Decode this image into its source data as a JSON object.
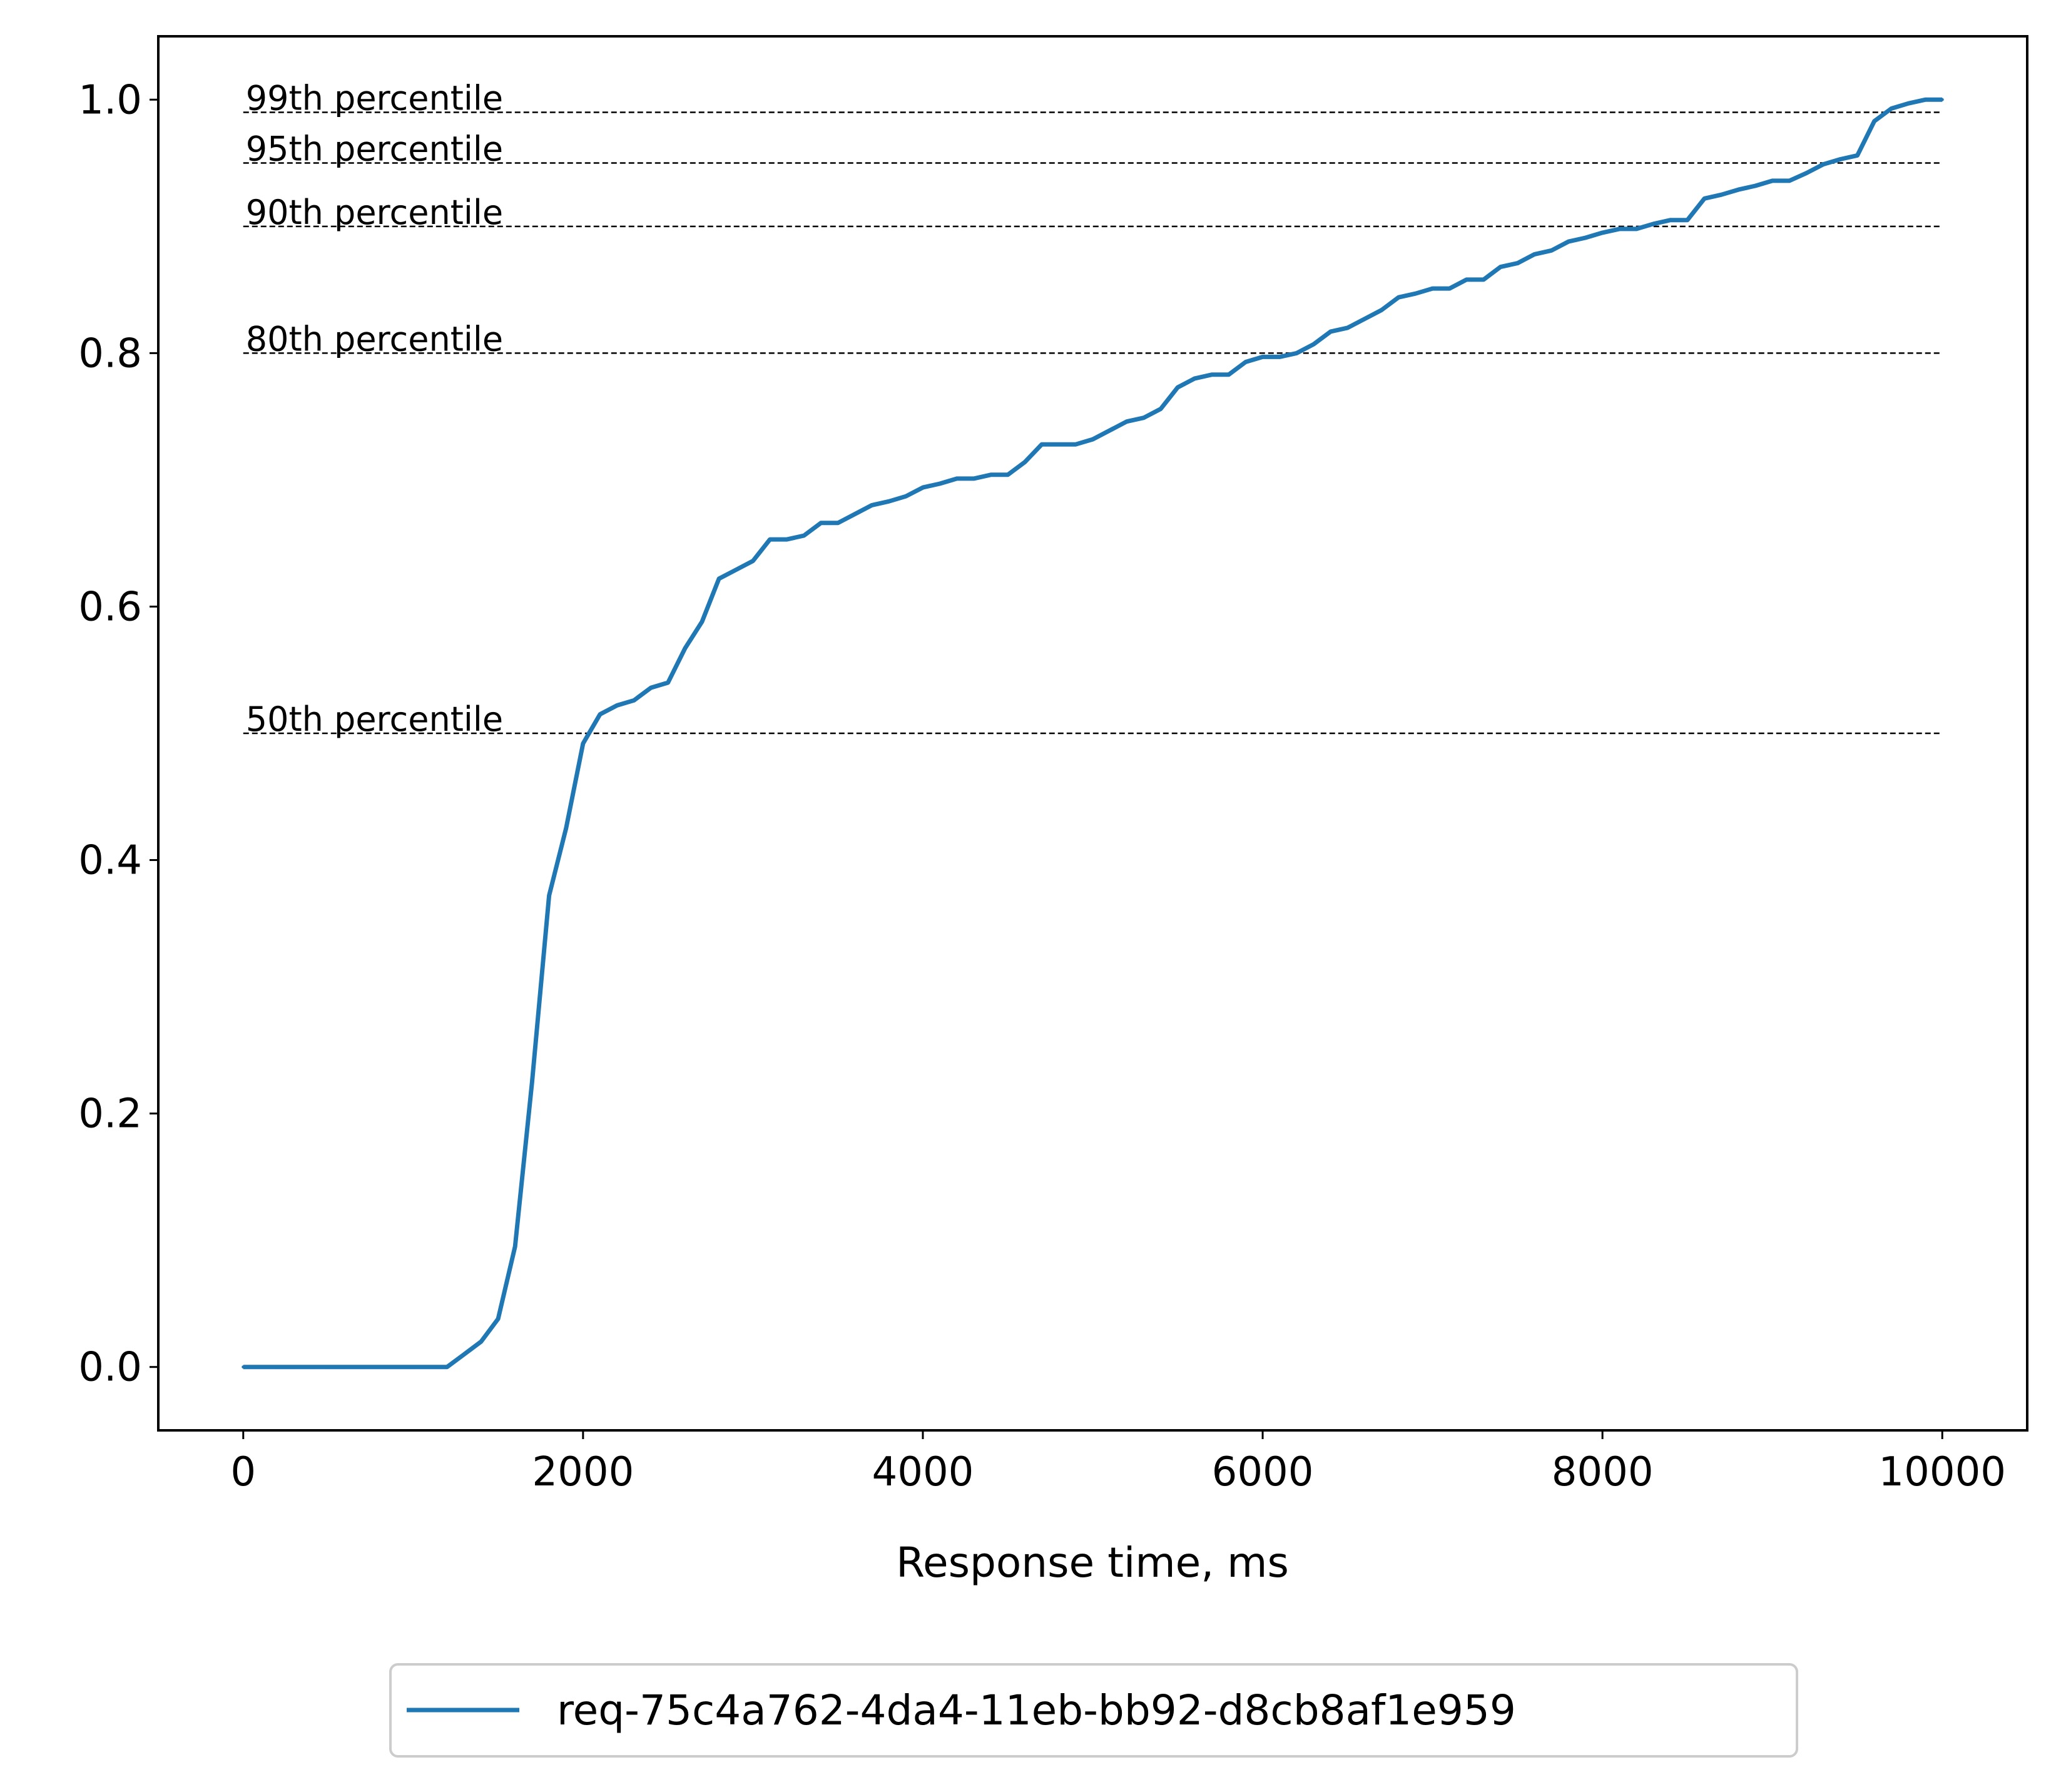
{
  "chart_data": {
    "type": "line",
    "title": "",
    "xlabel": "Response time, ms",
    "ylabel": "",
    "xlim": [
      -500,
      10500
    ],
    "ylim": [
      -0.05,
      1.05
    ],
    "x_ticks": [
      0,
      2000,
      4000,
      6000,
      8000,
      10000
    ],
    "x_tick_labels": [
      "0",
      "2000",
      "4000",
      "6000",
      "8000",
      "10000"
    ],
    "y_ticks": [
      0.0,
      0.2,
      0.4,
      0.6,
      0.8,
      1.0
    ],
    "y_tick_labels": [
      "0.0",
      "0.2",
      "0.4",
      "0.6",
      "0.8",
      "1.0"
    ],
    "grid": false,
    "legend": {
      "position": "bottom-center"
    },
    "colors": {
      "series": "#1f77b4",
      "reference": "#000000"
    },
    "reference_lines": [
      {
        "label": "99th percentile",
        "y": 0.99,
        "x_start": 0,
        "x_end": 10000
      },
      {
        "label": "95th percentile",
        "y": 0.95,
        "x_start": 0,
        "x_end": 10000
      },
      {
        "label": "90th percentile",
        "y": 0.9,
        "x_start": 0,
        "x_end": 10000
      },
      {
        "label": "80th percentile",
        "y": 0.8,
        "x_start": 0,
        "x_end": 10000
      },
      {
        "label": "50th percentile",
        "y": 0.5,
        "x_start": 0,
        "x_end": 10000
      }
    ],
    "series": [
      {
        "name": "req-75c4a762-4da4-11eb-bb92-d8cb8af1e959",
        "color": "#1f77b4",
        "x": [
          0,
          100,
          200,
          300,
          400,
          500,
          600,
          700,
          800,
          900,
          1000,
          1100,
          1200,
          1300,
          1400,
          1500,
          1600,
          1700,
          1800,
          1900,
          2000,
          2100,
          2200,
          2300,
          2400,
          2500,
          2600,
          2700,
          2800,
          2900,
          3000,
          3100,
          3200,
          3300,
          3400,
          3500,
          3600,
          3700,
          3800,
          3900,
          4000,
          4100,
          4200,
          4300,
          4400,
          4500,
          4600,
          4700,
          4800,
          4900,
          5000,
          5100,
          5200,
          5300,
          5400,
          5500,
          5600,
          5700,
          5800,
          5900,
          6000,
          6100,
          6200,
          6300,
          6400,
          6500,
          6600,
          6700,
          6800,
          6900,
          7000,
          7100,
          7200,
          7300,
          7400,
          7500,
          7600,
          7700,
          7800,
          7900,
          8000,
          8100,
          8200,
          8300,
          8400,
          8500,
          8600,
          8700,
          8800,
          8900,
          9000,
          9100,
          9200,
          9300,
          9400,
          9500,
          9600,
          9700,
          9800,
          9900,
          10000
        ],
        "y": [
          0.0,
          0.0,
          0.0,
          0.0,
          0.0,
          0.0,
          0.0,
          0.0,
          0.0,
          0.0,
          0.0,
          0.0,
          0.0,
          0.01,
          0.02,
          0.038,
          0.095,
          0.225,
          0.372,
          0.425,
          0.492,
          0.515,
          0.522,
          0.526,
          0.536,
          0.54,
          0.567,
          0.588,
          0.622,
          0.629,
          0.636,
          0.653,
          0.653,
          0.656,
          0.666,
          0.666,
          0.673,
          0.68,
          0.683,
          0.687,
          0.694,
          0.697,
          0.701,
          0.701,
          0.704,
          0.704,
          0.714,
          0.728,
          0.728,
          0.728,
          0.732,
          0.739,
          0.746,
          0.749,
          0.756,
          0.773,
          0.78,
          0.783,
          0.783,
          0.793,
          0.797,
          0.797,
          0.8,
          0.807,
          0.817,
          0.82,
          0.827,
          0.834,
          0.844,
          0.847,
          0.851,
          0.851,
          0.858,
          0.858,
          0.868,
          0.871,
          0.878,
          0.881,
          0.888,
          0.891,
          0.895,
          0.898,
          0.898,
          0.902,
          0.905,
          0.905,
          0.922,
          0.925,
          0.929,
          0.932,
          0.936,
          0.936,
          0.942,
          0.949,
          0.953,
          0.956,
          0.983,
          0.993,
          0.997,
          1.0,
          1.0
        ]
      }
    ]
  }
}
